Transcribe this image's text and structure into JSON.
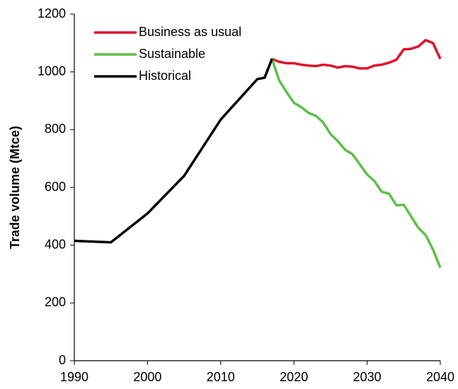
{
  "chart_data": {
    "type": "line",
    "y_label": "Trade volume (Mtce)",
    "xlim": [
      1990,
      2040
    ],
    "xticks": [
      1990,
      2000,
      2010,
      2020,
      2030,
      2040
    ],
    "ylim": [
      0,
      1200
    ],
    "yticks": [
      0,
      200,
      400,
      600,
      800,
      1000,
      1200
    ],
    "grid": false,
    "legend": "upper-left",
    "series": [
      {
        "name": "Business as usual",
        "color": "#e0102a",
        "x": [
          2017,
          2018,
          2019,
          2020,
          2021,
          2022,
          2023,
          2024,
          2025,
          2026,
          2027,
          2028,
          2029,
          2030,
          2031,
          2032,
          2033,
          2034,
          2035,
          2036,
          2037,
          2038,
          2039,
          2040
        ],
        "values": [
          1045,
          1035,
          1030,
          1030,
          1025,
          1022,
          1020,
          1025,
          1022,
          1015,
          1020,
          1018,
          1012,
          1012,
          1022,
          1025,
          1032,
          1042,
          1078,
          1080,
          1088,
          1110,
          1100,
          1045
        ]
      },
      {
        "name": "Sustainable",
        "color": "#5cbf4a",
        "x": [
          2016,
          2017,
          2018,
          2019,
          2020,
          2021,
          2022,
          2023,
          2024,
          2025,
          2026,
          2027,
          2028,
          2029,
          2030,
          2031,
          2032,
          2033,
          2034,
          2035,
          2036,
          2037,
          2038,
          2039,
          2040
        ],
        "values": [
          980,
          1045,
          970,
          930,
          893,
          878,
          858,
          848,
          825,
          785,
          760,
          730,
          715,
          680,
          645,
          622,
          585,
          578,
          538,
          540,
          500,
          460,
          435,
          385,
          322
        ]
      },
      {
        "name": "Historical",
        "color": "#000000",
        "x": [
          1990,
          1995,
          2000,
          2005,
          2010,
          2015,
          2016,
          2017
        ],
        "values": [
          415,
          410,
          510,
          640,
          835,
          975,
          980,
          1045
        ]
      }
    ]
  }
}
